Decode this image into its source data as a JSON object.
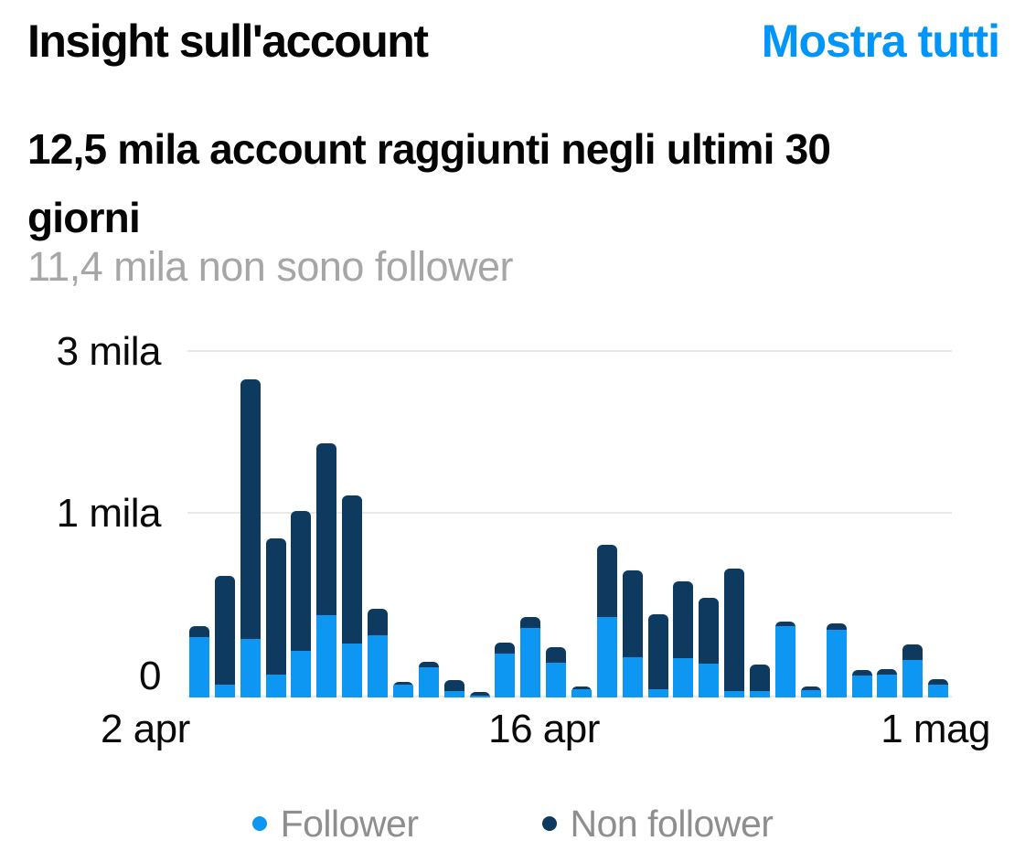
{
  "header": {
    "title": "Insight sull'account",
    "action_label": "Mostra tutti"
  },
  "summary": {
    "headline_line1": "12,5 mila account raggiunti negli ultimi 30",
    "headline_line2": "giorni",
    "subtext": "11,4 mila non sono follower"
  },
  "colors": {
    "accent_blue": "#0095F6",
    "follower_blue": "#0D97F3",
    "non_follower_navy": "#0E3A60",
    "muted_gray": "#A6A6A6",
    "legend_gray": "#8E8E8E",
    "gridline_gray": "#E9E9E9"
  },
  "chart_data": {
    "type": "bar",
    "stacked": true,
    "title": "",
    "xlabel": "",
    "ylabel": "",
    "grid": true,
    "legend_position": "bottom",
    "ylim": [
      0,
      3000
    ],
    "y_ticks": [
      {
        "label": "0",
        "value": 0
      },
      {
        "label": "1 mila",
        "value": 1000
      },
      {
        "label": "3 mila",
        "value": 3000
      }
    ],
    "x_tick_labels": [
      "2 apr",
      "16 apr",
      "1 mag"
    ],
    "categories": [
      "2 apr",
      "3 apr",
      "4 apr",
      "5 apr",
      "6 apr",
      "7 apr",
      "8 apr",
      "9 apr",
      "10 apr",
      "11 apr",
      "12 apr",
      "13 apr",
      "14 apr",
      "15 apr",
      "16 apr",
      "17 apr",
      "18 apr",
      "19 apr",
      "20 apr",
      "21 apr",
      "22 apr",
      "23 apr",
      "24 apr",
      "25 apr",
      "26 apr",
      "27 apr",
      "28 apr",
      "29 apr",
      "30 apr",
      "1 mag"
    ],
    "series": [
      {
        "name": "Follower",
        "color_key": "follower_blue",
        "values": [
          330,
          70,
          320,
          125,
          255,
          450,
          295,
          340,
          70,
          165,
          35,
          10,
          240,
          380,
          190,
          45,
          440,
          220,
          45,
          215,
          185,
          35,
          35,
          390,
          40,
          370,
          120,
          125,
          205,
          70
        ]
      },
      {
        "name": "Non follower",
        "color_key": "non_follower_navy",
        "values": [
          60,
          590,
          2340,
          740,
          775,
          1420,
          935,
          145,
          15,
          30,
          60,
          20,
          60,
          60,
          85,
          15,
          390,
          470,
          410,
          415,
          355,
          665,
          145,
          25,
          20,
          35,
          30,
          30,
          85,
          30
        ]
      }
    ]
  }
}
